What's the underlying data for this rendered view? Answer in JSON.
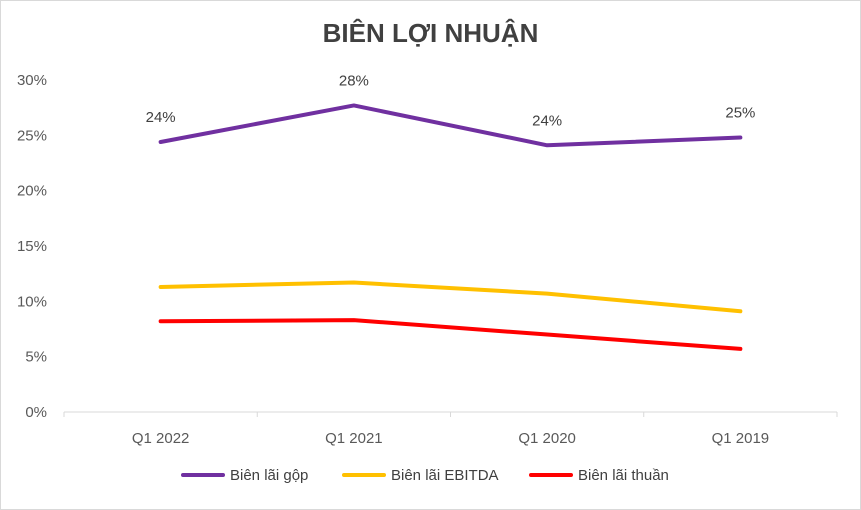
{
  "chart_data": {
    "type": "line",
    "title": "BIÊN LỢI NHUẬN",
    "categories": [
      "Q1 2022",
      "Q1 2021",
      "Q1 2020",
      "Q1 2019"
    ],
    "ylim": [
      0,
      30
    ],
    "yticks": [
      0,
      5,
      10,
      15,
      20,
      25,
      30
    ],
    "ytick_labels": [
      "0%",
      "5%",
      "10%",
      "15%",
      "20%",
      "25%",
      "30%"
    ],
    "xlabel": "",
    "ylabel": "",
    "grid": false,
    "legend_position": "bottom",
    "series": [
      {
        "name": "Biên lãi gộp",
        "color": "#7030a0",
        "values": [
          24.4,
          27.7,
          24.1,
          24.8
        ],
        "data_labels": [
          "24%",
          "28%",
          "24%",
          "25%"
        ]
      },
      {
        "name": "Biên lãi EBITDA",
        "color": "#ffc000",
        "values": [
          11.3,
          11.7,
          10.7,
          9.1
        ],
        "data_labels": []
      },
      {
        "name": "Biên lãi thuần",
        "color": "#ff0000",
        "values": [
          8.2,
          8.3,
          7.0,
          5.7
        ],
        "data_labels": []
      }
    ]
  }
}
